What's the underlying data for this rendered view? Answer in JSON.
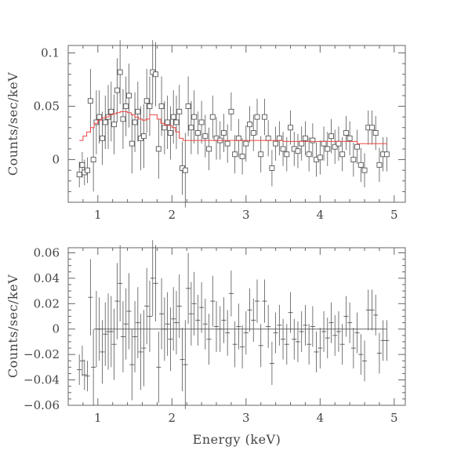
{
  "chart_data": [
    {
      "type": "scatter",
      "title": "",
      "xlabel": "",
      "ylabel": "Counts/sec/keV",
      "xlim": [
        0.6,
        5.15
      ],
      "ylim": [
        -0.04,
        0.107
      ],
      "x_ticks": [
        "1",
        "2",
        "3",
        "4",
        "5"
      ],
      "y_ticks": [
        {
          "value": 0,
          "label": "0"
        },
        {
          "value": 0.05,
          "label": "0.05"
        },
        {
          "value": 0.1,
          "label": "0.1"
        }
      ],
      "grid": false,
      "legend": "none",
      "series": [
        {
          "kind": "data-points-with-error-bars",
          "marker": "open-square",
          "color": "#555555",
          "x": [
            0.75,
            0.79,
            0.82,
            0.86,
            0.9,
            0.94,
            0.98,
            1.02,
            1.06,
            1.1,
            1.14,
            1.18,
            1.22,
            1.26,
            1.3,
            1.34,
            1.38,
            1.42,
            1.46,
            1.5,
            1.54,
            1.58,
            1.62,
            1.66,
            1.7,
            1.74,
            1.78,
            1.82,
            1.86,
            1.9,
            1.94,
            1.98,
            2.02,
            2.06,
            2.1,
            2.14,
            2.18,
            2.22,
            2.26,
            2.3,
            2.35,
            2.4,
            2.45,
            2.5,
            2.55,
            2.6,
            2.65,
            2.7,
            2.75,
            2.8,
            2.85,
            2.9,
            2.95,
            3.0,
            3.05,
            3.1,
            3.15,
            3.2,
            3.25,
            3.3,
            3.35,
            3.4,
            3.45,
            3.5,
            3.55,
            3.6,
            3.65,
            3.7,
            3.75,
            3.8,
            3.85,
            3.9,
            3.95,
            4.0,
            4.05,
            4.1,
            4.15,
            4.2,
            4.25,
            4.3,
            4.35,
            4.4,
            4.45,
            4.5,
            4.55,
            4.6,
            4.65,
            4.7,
            4.75,
            4.8,
            4.85,
            4.9
          ],
          "y": [
            -0.014,
            -0.005,
            -0.012,
            -0.01,
            0.055,
            0.0,
            0.035,
            0.04,
            0.02,
            0.035,
            0.04,
            0.045,
            0.033,
            0.065,
            0.082,
            0.038,
            0.05,
            0.06,
            0.015,
            0.035,
            0.045,
            0.02,
            0.022,
            0.055,
            0.05,
            0.082,
            0.08,
            0.01,
            0.05,
            0.03,
            0.035,
            0.025,
            0.04,
            0.035,
            0.045,
            -0.008,
            -0.01,
            0.05,
            0.03,
            0.04,
            0.025,
            0.035,
            0.022,
            0.01,
            0.04,
            0.02,
            0.018,
            0.025,
            0.015,
            0.045,
            0.005,
            0.02,
            0.003,
            0.015,
            0.033,
            0.025,
            0.04,
            0.005,
            0.04,
            0.02,
            -0.008,
            0.015,
            0.02,
            0.01,
            0.005,
            0.03,
            0.01,
            0.008,
            0.015,
            0.02,
            0.005,
            0.018,
            0.0,
            0.002,
            0.015,
            0.01,
            0.022,
            0.012,
            0.015,
            0.005,
            0.025,
            0.02,
            0.0,
            0.012,
            -0.005,
            -0.01,
            0.03,
            0.03,
            0.025,
            -0.005,
            0.005,
            0.005
          ],
          "yerr": [
            0.012,
            0.012,
            0.012,
            0.012,
            0.03,
            0.03,
            0.03,
            0.025,
            0.025,
            0.025,
            0.03,
            0.028,
            0.028,
            0.03,
            0.03,
            0.028,
            0.028,
            0.03,
            0.028,
            0.028,
            0.028,
            0.03,
            0.03,
            0.03,
            0.028,
            0.03,
            0.03,
            0.028,
            0.028,
            0.025,
            0.025,
            0.025,
            0.025,
            0.025,
            0.025,
            0.025,
            0.035,
            0.028,
            0.025,
            0.025,
            0.02,
            0.02,
            0.02,
            0.02,
            0.02,
            0.02,
            0.018,
            0.018,
            0.018,
            0.018,
            0.018,
            0.018,
            0.017,
            0.017,
            0.017,
            0.017,
            0.017,
            0.017,
            0.017,
            0.017,
            0.017,
            0.016,
            0.016,
            0.016,
            0.016,
            0.016,
            0.016,
            0.016,
            0.016,
            0.016,
            0.016,
            0.016,
            0.016,
            0.016,
            0.016,
            0.016,
            0.016,
            0.016,
            0.016,
            0.016,
            0.016,
            0.016,
            0.016,
            0.016,
            0.016,
            0.016,
            0.016,
            0.016,
            0.016,
            0.016,
            0.016,
            0.016
          ]
        },
        {
          "kind": "model-step-line",
          "color": "#ee4444",
          "x": [
            0.75,
            0.8,
            0.85,
            0.9,
            0.95,
            1.0,
            1.05,
            1.1,
            1.15,
            1.2,
            1.25,
            1.3,
            1.35,
            1.4,
            1.45,
            1.5,
            1.55,
            1.6,
            1.65,
            1.7,
            1.75,
            1.8,
            1.85,
            1.9,
            1.95,
            2.0,
            2.05,
            2.1,
            2.15,
            2.2,
            2.3,
            2.5,
            2.8,
            3.0,
            3.5,
            4.0,
            4.5,
            4.9
          ],
          "y": [
            0.018,
            0.022,
            0.026,
            0.03,
            0.034,
            0.037,
            0.039,
            0.04,
            0.042,
            0.043,
            0.044,
            0.045,
            0.045,
            0.044,
            0.042,
            0.04,
            0.038,
            0.037,
            0.038,
            0.042,
            0.042,
            0.038,
            0.034,
            0.032,
            0.032,
            0.03,
            0.026,
            0.02,
            0.018,
            0.018,
            0.018,
            0.018,
            0.018,
            0.018,
            0.017,
            0.017,
            0.015,
            0.014
          ]
        }
      ]
    },
    {
      "type": "scatter",
      "title": "",
      "xlabel": "Energy (keV)",
      "ylabel": "Counts/sec/keV",
      "xlim": [
        0.6,
        5.15
      ],
      "ylim": [
        -0.06,
        0.064
      ],
      "x_ticks": [
        "1",
        "2",
        "3",
        "4",
        "5"
      ],
      "y_ticks": [
        {
          "value": -0.06,
          "label": "−0.06"
        },
        {
          "value": -0.04,
          "label": "−0.04"
        },
        {
          "value": -0.02,
          "label": "−0.02"
        },
        {
          "value": 0,
          "label": "0"
        },
        {
          "value": 0.02,
          "label": "0.02"
        },
        {
          "value": 0.04,
          "label": "0.04"
        },
        {
          "value": 0.06,
          "label": "0.06"
        }
      ],
      "grid": false,
      "legend": "none",
      "reference_line": {
        "y": 0,
        "color": "#666666"
      },
      "series": [
        {
          "kind": "residuals-with-error-bars",
          "marker": "cross",
          "color": "#555555",
          "x": [
            0.75,
            0.79,
            0.82,
            0.86,
            0.9,
            0.94,
            0.98,
            1.02,
            1.06,
            1.1,
            1.14,
            1.18,
            1.22,
            1.26,
            1.3,
            1.34,
            1.38,
            1.42,
            1.46,
            1.5,
            1.54,
            1.58,
            1.62,
            1.66,
            1.7,
            1.74,
            1.78,
            1.82,
            1.86,
            1.9,
            1.94,
            1.98,
            2.02,
            2.06,
            2.1,
            2.14,
            2.18,
            2.22,
            2.26,
            2.3,
            2.35,
            2.4,
            2.45,
            2.5,
            2.55,
            2.6,
            2.65,
            2.7,
            2.75,
            2.8,
            2.85,
            2.9,
            2.95,
            3.0,
            3.05,
            3.1,
            3.15,
            3.2,
            3.25,
            3.3,
            3.35,
            3.4,
            3.45,
            3.5,
            3.55,
            3.6,
            3.65,
            3.7,
            3.75,
            3.8,
            3.85,
            3.9,
            3.95,
            4.0,
            4.05,
            4.1,
            4.15,
            4.2,
            4.25,
            4.3,
            4.35,
            4.4,
            4.45,
            4.5,
            4.55,
            4.6,
            4.65,
            4.7,
            4.75,
            4.8,
            4.85,
            4.9
          ],
          "y": [
            -0.032,
            -0.025,
            -0.036,
            -0.037,
            0.025,
            -0.03,
            0.0,
            0.0,
            -0.018,
            -0.004,
            -0.002,
            -0.002,
            -0.012,
            0.022,
            0.036,
            -0.006,
            0.004,
            0.014,
            -0.028,
            -0.006,
            0.005,
            -0.018,
            -0.015,
            0.018,
            0.01,
            0.04,
            0.036,
            -0.03,
            0.012,
            0.0,
            0.004,
            -0.008,
            0.008,
            0.005,
            0.018,
            -0.024,
            -0.028,
            0.032,
            0.012,
            0.02,
            0.007,
            0.017,
            0.004,
            -0.008,
            0.022,
            0.002,
            0.0,
            0.007,
            -0.003,
            0.028,
            -0.012,
            0.002,
            -0.014,
            -0.003,
            0.015,
            0.007,
            0.022,
            -0.013,
            0.022,
            0.002,
            -0.027,
            -0.003,
            0.003,
            -0.008,
            -0.012,
            0.013,
            -0.008,
            -0.01,
            -0.002,
            0.003,
            -0.012,
            0.002,
            -0.018,
            -0.015,
            -0.002,
            -0.007,
            0.005,
            -0.005,
            -0.002,
            -0.012,
            0.01,
            0.005,
            -0.015,
            -0.003,
            -0.02,
            -0.025,
            0.015,
            0.015,
            0.011,
            -0.019,
            -0.009,
            -0.009
          ],
          "yerr": [
            0.012,
            0.012,
            0.012,
            0.012,
            0.03,
            0.03,
            0.03,
            0.025,
            0.025,
            0.025,
            0.03,
            0.028,
            0.028,
            0.03,
            0.03,
            0.028,
            0.028,
            0.03,
            0.028,
            0.028,
            0.028,
            0.03,
            0.03,
            0.03,
            0.028,
            0.03,
            0.03,
            0.028,
            0.028,
            0.025,
            0.025,
            0.025,
            0.025,
            0.025,
            0.025,
            0.025,
            0.035,
            0.028,
            0.025,
            0.025,
            0.02,
            0.02,
            0.02,
            0.02,
            0.02,
            0.02,
            0.018,
            0.018,
            0.018,
            0.018,
            0.018,
            0.018,
            0.017,
            0.017,
            0.017,
            0.017,
            0.017,
            0.017,
            0.017,
            0.017,
            0.017,
            0.016,
            0.016,
            0.016,
            0.016,
            0.016,
            0.016,
            0.016,
            0.016,
            0.016,
            0.016,
            0.016,
            0.016,
            0.016,
            0.016,
            0.016,
            0.016,
            0.016,
            0.016,
            0.016,
            0.016,
            0.016,
            0.016,
            0.016,
            0.016,
            0.016,
            0.016,
            0.016,
            0.016,
            0.016,
            0.016,
            0.016
          ]
        }
      ]
    }
  ]
}
